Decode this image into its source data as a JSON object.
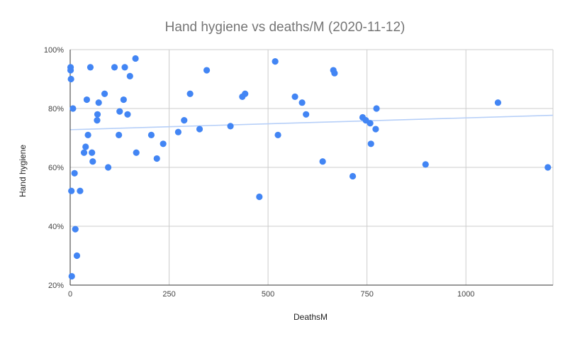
{
  "chart_data": {
    "type": "scatter",
    "title": "Hand hygiene vs deaths/M (2020-11-12)",
    "xlabel": "DeathsM",
    "ylabel": "Hand hygiene",
    "xlim": [
      0,
      1220
    ],
    "ylim": [
      20,
      100
    ],
    "x_ticks": [
      0,
      250,
      500,
      750,
      1000
    ],
    "x_tick_labels": [
      "0",
      "250",
      "500",
      "750",
      "1000"
    ],
    "y_ticks": [
      20,
      40,
      60,
      80,
      100
    ],
    "y_tick_labels": [
      "20%",
      "40%",
      "60%",
      "80%",
      "100%"
    ],
    "grid": true,
    "legend": "none",
    "colors": {
      "points": "#4285f4",
      "trendline": "#b6cff8",
      "grid": "#cccccc",
      "axis": "#333333"
    },
    "trendline": {
      "type": "linear",
      "x": [
        0,
        1220
      ],
      "y": [
        72.8,
        77.7
      ]
    },
    "series": [
      {
        "points": [
          [
            1,
            94
          ],
          [
            1,
            93
          ],
          [
            2,
            90
          ],
          [
            3,
            52
          ],
          [
            4,
            23
          ],
          [
            7,
            80
          ],
          [
            11,
            58
          ],
          [
            13,
            39
          ],
          [
            17,
            30
          ],
          [
            25,
            52
          ],
          [
            35,
            65
          ],
          [
            39,
            67
          ],
          [
            42,
            83
          ],
          [
            45,
            71
          ],
          [
            51,
            94
          ],
          [
            55,
            65
          ],
          [
            57,
            62
          ],
          [
            68,
            76
          ],
          [
            69,
            78
          ],
          [
            72,
            82
          ],
          [
            87,
            85
          ],
          [
            96,
            60
          ],
          [
            112,
            94
          ],
          [
            123,
            71
          ],
          [
            125,
            79
          ],
          [
            135,
            83
          ],
          [
            138,
            94
          ],
          [
            145,
            78
          ],
          [
            151,
            91
          ],
          [
            165,
            97
          ],
          [
            167,
            65
          ],
          [
            205,
            71
          ],
          [
            219,
            63
          ],
          [
            235,
            68
          ],
          [
            273,
            72
          ],
          [
            288,
            76
          ],
          [
            303,
            85
          ],
          [
            327,
            73
          ],
          [
            345,
            93
          ],
          [
            405,
            74
          ],
          [
            435,
            84
          ],
          [
            442,
            85
          ],
          [
            478,
            50
          ],
          [
            518,
            96
          ],
          [
            525,
            71
          ],
          [
            568,
            84
          ],
          [
            586,
            82
          ],
          [
            596,
            78
          ],
          [
            638,
            62
          ],
          [
            665,
            93
          ],
          [
            668,
            92
          ],
          [
            714,
            57
          ],
          [
            739,
            77
          ],
          [
            747,
            76
          ],
          [
            758,
            75
          ],
          [
            760,
            68
          ],
          [
            772,
            73
          ],
          [
            774,
            80
          ],
          [
            898,
            61
          ],
          [
            1081,
            82
          ],
          [
            1207,
            60
          ]
        ]
      }
    ]
  }
}
